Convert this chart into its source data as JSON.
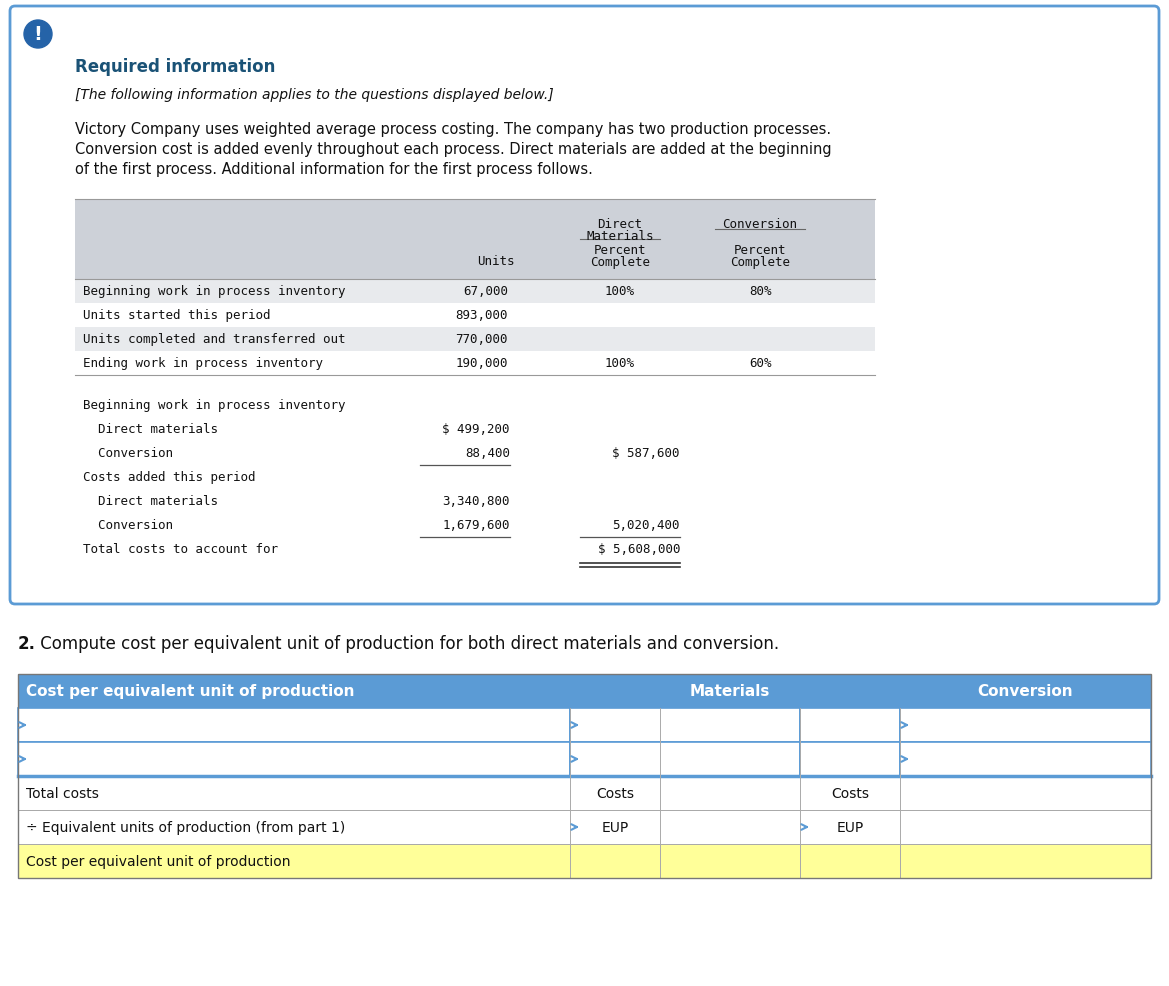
{
  "bg_color": "#ffffff",
  "outer_border_color": "#5b9bd5",
  "exclamation_bg": "#2563a8",
  "required_info_color": "#1a5276",
  "required_info_text": "Required information",
  "italic_text": "[The following information applies to the questions displayed below.]",
  "body_line1": "Victory Company uses weighted average process costing. The company has two production processes.",
  "body_line2": "Conversion cost is added evenly throughout each process. Direct materials are added at the beginning",
  "body_line3": "of the first process. Additional information for the first process follows.",
  "table1_header_bg": "#cdd1d8",
  "table1_row_bg": [
    "#e8eaed",
    "#ffffff",
    "#e8eaed",
    "#ffffff"
  ],
  "table1_rows": [
    {
      "label": "Beginning work in process inventory",
      "units": "67,000",
      "dm_pct": "100%",
      "conv_pct": "80%"
    },
    {
      "label": "Units started this period",
      "units": "893,000",
      "dm_pct": "",
      "conv_pct": ""
    },
    {
      "label": "Units completed and transferred out",
      "units": "770,000",
      "dm_pct": "",
      "conv_pct": ""
    },
    {
      "label": "Ending work in process inventory",
      "units": "190,000",
      "dm_pct": "100%",
      "conv_pct": "60%"
    }
  ],
  "cost_rows": [
    {
      "label": "Beginning work in process inventory",
      "col1": "",
      "col2": "",
      "underline_col1": false,
      "underline_col2": false
    },
    {
      "label": "  Direct materials",
      "col1": "$ 499,200",
      "col2": "",
      "underline_col1": false,
      "underline_col2": false
    },
    {
      "label": "  Conversion",
      "col1": "88,400",
      "col2": "$ 587,600",
      "underline_col1": true,
      "underline_col2": false
    },
    {
      "label": "Costs added this period",
      "col1": "",
      "col2": "",
      "underline_col1": false,
      "underline_col2": false
    },
    {
      "label": "  Direct materials",
      "col1": "3,340,800",
      "col2": "",
      "underline_col1": false,
      "underline_col2": false
    },
    {
      "label": "  Conversion",
      "col1": "1,679,600",
      "col2": "5,020,400",
      "underline_col1": true,
      "underline_col2": true
    },
    {
      "label": "Total costs to account for",
      "col1": "",
      "col2": "$ 5,608,000",
      "underline_col1": false,
      "underline_col2": false,
      "double_underline": true
    }
  ],
  "q2_bold": "2.",
  "q2_rest": " Compute cost per equivalent unit of production for both direct materials and conversion.",
  "t2_header_bg": "#5b9bd5",
  "t2_header_fg": "#ffffff",
  "t2_header_label": "Cost per equivalent unit of production",
  "t2_mat_header": "Materials",
  "t2_conv_header": "Conversion",
  "t2_input_border": "#5b9bd5",
  "yellow_bg": "#ffff99"
}
